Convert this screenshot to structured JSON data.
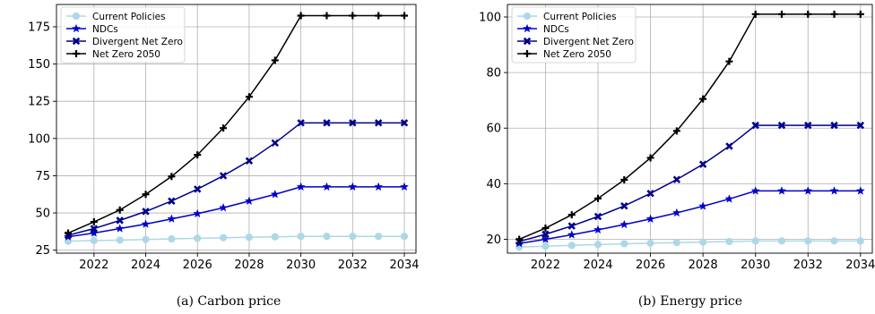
{
  "chart_data": [
    {
      "type": "line",
      "caption": "(a) Carbon price",
      "x": [
        2021,
        2022,
        2023,
        2024,
        2025,
        2026,
        2027,
        2028,
        2029,
        2030,
        2031,
        2032,
        2033,
        2034
      ],
      "xticks": [
        2022,
        2024,
        2026,
        2028,
        2030,
        2032,
        2034
      ],
      "xlim": [
        2020.55,
        2034.45
      ],
      "yticks": [
        25,
        50,
        75,
        100,
        125,
        150,
        175
      ],
      "ylim": [
        23,
        190
      ],
      "grid": true,
      "legend_position": "top-left",
      "series": [
        {
          "name": "Current Policies",
          "color": "#add8e6",
          "marker": "circle",
          "values": [
            31,
            31.5,
            31.8,
            32.2,
            32.6,
            33,
            33.4,
            33.7,
            34,
            34.3,
            34.3,
            34.3,
            34.3,
            34.3
          ]
        },
        {
          "name": "NDCs",
          "color": "#0000cd",
          "marker": "star",
          "values": [
            34,
            36.5,
            39.5,
            42.5,
            46,
            49.5,
            53.5,
            58,
            62.5,
            67.5,
            67.5,
            67.5,
            67.5,
            67.5
          ]
        },
        {
          "name": "Divergent Net Zero",
          "color": "#00008b",
          "marker": "x",
          "values": [
            35,
            39.5,
            45,
            51,
            58,
            66,
            75,
            85,
            97,
            110.5,
            110.5,
            110.5,
            110.5,
            110.5
          ]
        },
        {
          "name": "Net Zero 2050",
          "color": "#000000",
          "marker": "plus",
          "values": [
            36.5,
            44,
            52,
            62.5,
            74.5,
            89,
            107,
            128,
            152.5,
            182.5,
            182.5,
            182.5,
            182.5,
            182.5
          ]
        }
      ]
    },
    {
      "type": "line",
      "caption": "(b) Energy price",
      "x": [
        2021,
        2022,
        2023,
        2024,
        2025,
        2026,
        2027,
        2028,
        2029,
        2030,
        2031,
        2032,
        2033,
        2034
      ],
      "xticks": [
        2022,
        2024,
        2026,
        2028,
        2030,
        2032,
        2034
      ],
      "xlim": [
        2020.55,
        2034.45
      ],
      "yticks": [
        20,
        40,
        60,
        80,
        100
      ],
      "ylim": [
        15,
        104.5
      ],
      "grid": true,
      "legend_position": "top-left",
      "series": [
        {
          "name": "Current Policies",
          "color": "#add8e6",
          "marker": "circle",
          "values": [
            17.2,
            17.5,
            17.8,
            18.1,
            18.4,
            18.6,
            18.8,
            19,
            19.2,
            19.4,
            19.4,
            19.4,
            19.4,
            19.4
          ]
        },
        {
          "name": "NDCs",
          "color": "#0000cd",
          "marker": "star",
          "values": [
            18.5,
            20,
            21.6,
            23.4,
            25.3,
            27.3,
            29.5,
            31.9,
            34.5,
            37.4,
            37.4,
            37.4,
            37.4,
            37.4
          ]
        },
        {
          "name": "Divergent Net Zero",
          "color": "#00008b",
          "marker": "x",
          "values": [
            19.2,
            21.8,
            24.8,
            28.2,
            32,
            36.5,
            41.5,
            47,
            53.5,
            61,
            61,
            61,
            61,
            61
          ]
        },
        {
          "name": "Net Zero 2050",
          "color": "#000000",
          "marker": "plus",
          "values": [
            20,
            24,
            28.8,
            34.7,
            41.4,
            49.3,
            59,
            70.5,
            84,
            101,
            101,
            101,
            101,
            101
          ]
        }
      ]
    }
  ]
}
